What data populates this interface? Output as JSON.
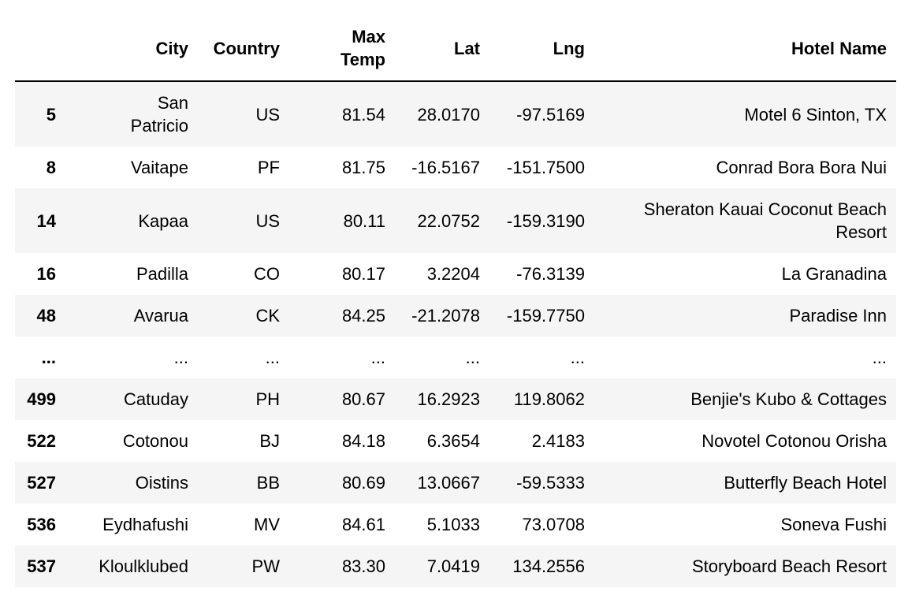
{
  "table": {
    "columns": [
      "",
      "City",
      "Country",
      "Max\nTemp",
      "Lat",
      "Lng",
      "Hotel Name"
    ],
    "rows": [
      {
        "index": "5",
        "city": "San\nPatricio",
        "country": "US",
        "max_temp": "81.54",
        "lat": "28.0170",
        "lng": "-97.5169",
        "hotel": "Motel 6 Sinton, TX"
      },
      {
        "index": "8",
        "city": "Vaitape",
        "country": "PF",
        "max_temp": "81.75",
        "lat": "-16.5167",
        "lng": "-151.7500",
        "hotel": "Conrad Bora Bora Nui"
      },
      {
        "index": "14",
        "city": "Kapaa",
        "country": "US",
        "max_temp": "80.11",
        "lat": "22.0752",
        "lng": "-159.3190",
        "hotel": "Sheraton Kauai Coconut Beach\nResort"
      },
      {
        "index": "16",
        "city": "Padilla",
        "country": "CO",
        "max_temp": "80.17",
        "lat": "3.2204",
        "lng": "-76.3139",
        "hotel": "La Granadina"
      },
      {
        "index": "48",
        "city": "Avarua",
        "country": "CK",
        "max_temp": "84.25",
        "lat": "-21.2078",
        "lng": "-159.7750",
        "hotel": "Paradise Inn"
      },
      {
        "index": "...",
        "city": "...",
        "country": "...",
        "max_temp": "...",
        "lat": "...",
        "lng": "...",
        "hotel": "..."
      },
      {
        "index": "499",
        "city": "Catuday",
        "country": "PH",
        "max_temp": "80.67",
        "lat": "16.2923",
        "lng": "119.8062",
        "hotel": "Benjie's Kubo & Cottages"
      },
      {
        "index": "522",
        "city": "Cotonou",
        "country": "BJ",
        "max_temp": "84.18",
        "lat": "6.3654",
        "lng": "2.4183",
        "hotel": "Novotel Cotonou Orisha"
      },
      {
        "index": "527",
        "city": "Oistins",
        "country": "BB",
        "max_temp": "80.69",
        "lat": "13.0667",
        "lng": "-59.5333",
        "hotel": "Butterfly Beach Hotel"
      },
      {
        "index": "536",
        "city": "Eydhafushi",
        "country": "MV",
        "max_temp": "84.61",
        "lat": "5.1033",
        "lng": "73.0708",
        "hotel": "Soneva Fushi"
      },
      {
        "index": "537",
        "city": "Kloulklubed",
        "country": "PW",
        "max_temp": "83.30",
        "lat": "7.0419",
        "lng": "134.2556",
        "hotel": "Storyboard Beach Resort"
      }
    ]
  }
}
